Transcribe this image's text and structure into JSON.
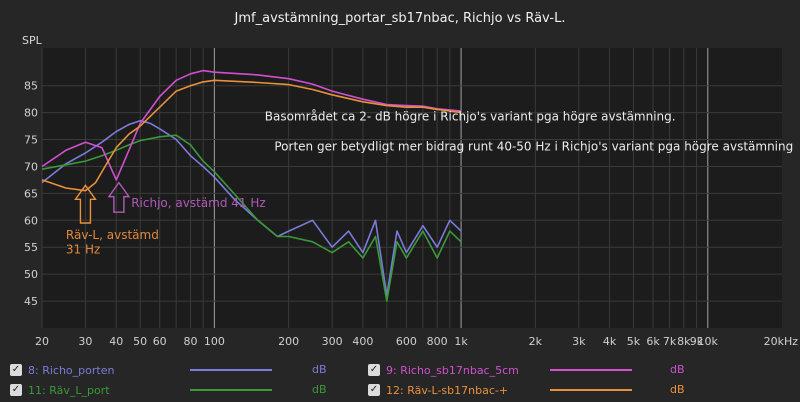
{
  "chart_data": {
    "type": "line",
    "title": "Jmf_avstämning_portar_sb17nbac, Richjo vs Räv-L.",
    "ylabel": "SPL",
    "xlabel": "",
    "x_scale": "log",
    "xlim": [
      20,
      20000
    ],
    "ylim": [
      40,
      92
    ],
    "grid": true,
    "x_ticks": [
      {
        "value": 20,
        "label": "20"
      },
      {
        "value": 30,
        "label": "30"
      },
      {
        "value": 40,
        "label": "40"
      },
      {
        "value": 50,
        "label": "50"
      },
      {
        "value": 60,
        "label": "60"
      },
      {
        "value": 80,
        "label": "80"
      },
      {
        "value": 100,
        "label": "100"
      },
      {
        "value": 200,
        "label": "200"
      },
      {
        "value": 300,
        "label": "300"
      },
      {
        "value": 400,
        "label": "400"
      },
      {
        "value": 600,
        "label": "600"
      },
      {
        "value": 800,
        "label": "800"
      },
      {
        "value": 1000,
        "label": "1k"
      },
      {
        "value": 2000,
        "label": "2k"
      },
      {
        "value": 3000,
        "label": "3k"
      },
      {
        "value": 4000,
        "label": "4k"
      },
      {
        "value": 5000,
        "label": "5k"
      },
      {
        "value": 6000,
        "label": "6k"
      },
      {
        "value": 7000,
        "label": "7k"
      },
      {
        "value": 8000,
        "label": "8k"
      },
      {
        "value": 9000,
        "label": "9k"
      },
      {
        "value": 10000,
        "label": "10k"
      },
      {
        "value": 20000,
        "label": "20kHz"
      }
    ],
    "y_ticks": [
      45,
      50,
      55,
      60,
      65,
      70,
      75,
      80,
      85
    ],
    "series": [
      {
        "name": "8: Richo_porten",
        "color": "#7b7bdc",
        "points": [
          [
            20,
            67
          ],
          [
            25,
            70.5
          ],
          [
            30,
            72.5
          ],
          [
            35,
            74.5
          ],
          [
            40,
            76.5
          ],
          [
            45,
            77.8
          ],
          [
            50,
            78.5
          ],
          [
            55,
            78
          ],
          [
            60,
            77
          ],
          [
            70,
            75
          ],
          [
            80,
            72
          ],
          [
            90,
            70
          ],
          [
            100,
            68
          ],
          [
            120,
            64
          ],
          [
            150,
            60
          ],
          [
            180,
            57
          ],
          [
            200,
            58
          ],
          [
            250,
            60
          ],
          [
            300,
            55
          ],
          [
            350,
            58
          ],
          [
            400,
            54
          ],
          [
            450,
            60
          ],
          [
            500,
            46
          ],
          [
            550,
            58
          ],
          [
            600,
            54
          ],
          [
            700,
            59
          ],
          [
            800,
            55
          ],
          [
            900,
            60
          ],
          [
            1000,
            58
          ]
        ]
      },
      {
        "name": "11: Räv_L_port",
        "color": "#3a9a3a",
        "points": [
          [
            20,
            69.5
          ],
          [
            25,
            70.3
          ],
          [
            30,
            71
          ],
          [
            35,
            72
          ],
          [
            40,
            73
          ],
          [
            45,
            74
          ],
          [
            50,
            74.8
          ],
          [
            60,
            75.5
          ],
          [
            70,
            75.8
          ],
          [
            80,
            74
          ],
          [
            90,
            71
          ],
          [
            100,
            69
          ],
          [
            120,
            65
          ],
          [
            150,
            60
          ],
          [
            180,
            57
          ],
          [
            200,
            57
          ],
          [
            250,
            56
          ],
          [
            300,
            54
          ],
          [
            350,
            56
          ],
          [
            400,
            53
          ],
          [
            450,
            57
          ],
          [
            500,
            45
          ],
          [
            550,
            56
          ],
          [
            600,
            53
          ],
          [
            700,
            58
          ],
          [
            800,
            53
          ],
          [
            900,
            58
          ],
          [
            1000,
            56
          ]
        ]
      },
      {
        "name": "9: Richo_sb17nbac_5cm",
        "color": "#d050d0",
        "points": [
          [
            20,
            70
          ],
          [
            25,
            73
          ],
          [
            30,
            74.5
          ],
          [
            35,
            73.5
          ],
          [
            40,
            67.5
          ],
          [
            45,
            73
          ],
          [
            50,
            78
          ],
          [
            60,
            83
          ],
          [
            70,
            86
          ],
          [
            80,
            87.2
          ],
          [
            90,
            87.8
          ],
          [
            100,
            87.5
          ],
          [
            150,
            87
          ],
          [
            200,
            86.3
          ],
          [
            250,
            85.3
          ],
          [
            300,
            84
          ],
          [
            400,
            82.5
          ],
          [
            500,
            81.5
          ],
          [
            600,
            81.3
          ],
          [
            700,
            81.2
          ],
          [
            800,
            80.7
          ],
          [
            900,
            80.5
          ],
          [
            1000,
            80.3
          ]
        ]
      },
      {
        "name": "12: Räv-L-sb17nbac-+",
        "color": "#e8913a",
        "points": [
          [
            20,
            67.5
          ],
          [
            25,
            66
          ],
          [
            30,
            65.5
          ],
          [
            33,
            67
          ],
          [
            36,
            70
          ],
          [
            40,
            73.5
          ],
          [
            45,
            76
          ],
          [
            50,
            77.5
          ],
          [
            60,
            81
          ],
          [
            70,
            84
          ],
          [
            80,
            85
          ],
          [
            90,
            85.7
          ],
          [
            100,
            86
          ],
          [
            150,
            85.6
          ],
          [
            200,
            85.2
          ],
          [
            250,
            84.3
          ],
          [
            300,
            83.3
          ],
          [
            400,
            82
          ],
          [
            500,
            81.3
          ],
          [
            600,
            81
          ],
          [
            700,
            81
          ],
          [
            800,
            80.6
          ],
          [
            900,
            80.3
          ],
          [
            1000,
            80
          ]
        ]
      }
    ],
    "annotations": [
      {
        "text": "Basområdet ca 2-    dB högre i Richjo's variant pga högre avstämning.",
        "x": 160,
        "y": 78.5,
        "color": "#ececec"
      },
      {
        "text": "Porten ger betydligt mer bidrag runt 40-50 Hz i Richjo's variant pga högre avstämning",
        "x": 175,
        "y": 73,
        "color": "#ececec"
      },
      {
        "text": "Richjo, avstämd 41 Hz",
        "x": 46,
        "y": 62.5,
        "color": "#b05ab8"
      },
      {
        "text": "Räv-L, avstämd",
        "x": 25,
        "y": 56.5,
        "color": "#e0883a"
      },
      {
        "text": "31 Hz",
        "x": 25,
        "y": 53.8,
        "color": "#e0883a"
      }
    ],
    "arrows": [
      {
        "x": 30,
        "y_tip": 66.5,
        "y_base": 59.5,
        "color": "#e8913a"
      },
      {
        "x": 41,
        "y_tip": 67,
        "y_base": 61.5,
        "color": "#b05ab8"
      }
    ]
  },
  "legend": [
    {
      "label": "8: Richo_porten",
      "color": "#7b7bdc",
      "unit": "dB",
      "checked": "✓"
    },
    {
      "label": "9: Richo_sb17nbac_5cm",
      "color": "#d050d0",
      "unit": "dB",
      "checked": "✓"
    },
    {
      "label": "11: Räv_L_port",
      "color": "#3a9a3a",
      "unit": "dB",
      "checked": "✓"
    },
    {
      "label": "12: Räv-L-sb17nbac-+",
      "color": "#e8913a",
      "unit": "dB",
      "checked": "✓"
    }
  ]
}
